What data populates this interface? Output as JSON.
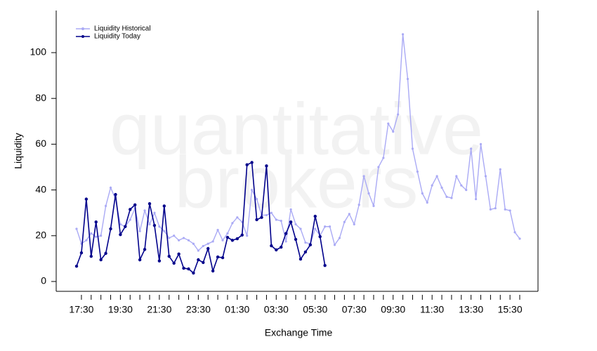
{
  "chart_data": {
    "type": "line",
    "watermark": [
      "quantitative",
      "brokers"
    ],
    "x_label": "Exchange Time",
    "y_label": "Liquidity",
    "categories": [
      null,
      "17:30",
      null,
      null,
      null,
      null,
      null,
      null,
      null,
      "19:30",
      null,
      null,
      null,
      null,
      null,
      null,
      null,
      "21:30",
      null,
      null,
      null,
      null,
      null,
      null,
      null,
      "23:30",
      null,
      null,
      null,
      null,
      null,
      null,
      null,
      "01:30",
      null,
      null,
      null,
      null,
      null,
      null,
      null,
      "03:30",
      null,
      null,
      null,
      null,
      null,
      null,
      null,
      "05:30",
      null,
      null,
      null,
      null,
      null,
      null,
      null,
      "07:30",
      null,
      null,
      null,
      null,
      null,
      null,
      null,
      "09:30",
      null,
      null,
      null,
      null,
      null,
      null,
      null,
      "11:30",
      null,
      null,
      null,
      null,
      null,
      null,
      null,
      "13:30",
      null,
      null,
      null,
      null,
      null,
      null,
      null,
      "15:30",
      null,
      null
    ],
    "ylim": [
      -4.3,
      118.4
    ],
    "yticks": [
      0,
      20,
      40,
      60,
      80,
      100
    ],
    "legend": "top-left",
    "series": [
      {
        "name": "Liquidity Historical",
        "color": "#aaaaf5",
        "values": [
          23,
          16.5,
          18,
          21,
          19.5,
          20,
          33,
          41,
          36,
          25,
          24,
          27,
          32,
          22,
          31,
          25,
          30,
          24,
          22,
          19,
          20,
          18,
          19,
          18,
          16.5,
          13.5,
          15.5,
          16.5,
          17.5,
          22.5,
          18,
          21,
          25.5,
          28,
          26,
          20,
          40,
          36,
          29,
          29,
          30,
          27,
          26.5,
          17.5,
          31.5,
          25,
          23,
          17,
          16.5,
          23,
          20,
          24,
          24,
          16,
          19,
          26,
          29.5,
          25,
          33.5,
          46,
          38.5,
          33,
          50,
          54,
          69,
          65.5,
          73,
          108,
          88.5,
          58,
          48,
          38.5,
          34.5,
          42,
          46,
          41,
          37,
          36.5,
          46,
          42,
          40,
          58,
          36,
          60,
          46,
          31.5,
          32,
          49,
          31.5,
          31,
          21.5,
          18.7
        ]
      },
      {
        "name": "Liquidity Today",
        "color": "#00008b",
        "values": [
          6.7,
          12.5,
          36,
          11,
          26,
          9.5,
          12.3,
          23,
          38,
          20.5,
          24,
          31.5,
          33.5,
          9.5,
          14,
          34,
          24.5,
          9,
          33,
          11,
          8,
          12,
          5.8,
          5.5,
          3.7,
          9.5,
          8.3,
          14.4,
          4.6,
          10.7,
          10.4,
          19.3,
          18,
          18.7,
          20.3,
          51,
          52,
          27,
          28,
          50.5,
          15.6,
          13.8,
          15,
          21,
          26,
          18.4,
          9.8,
          12.9,
          16,
          28.5,
          19.6,
          7,
          null,
          null,
          null,
          null,
          null,
          null,
          null,
          null,
          null,
          null,
          null,
          null,
          null,
          null,
          null,
          null,
          null,
          null,
          null,
          null,
          null,
          null,
          null,
          null,
          null,
          null,
          null,
          null,
          null,
          null,
          null,
          null,
          null,
          null,
          null,
          null,
          null,
          null,
          null,
          null
        ]
      }
    ]
  }
}
